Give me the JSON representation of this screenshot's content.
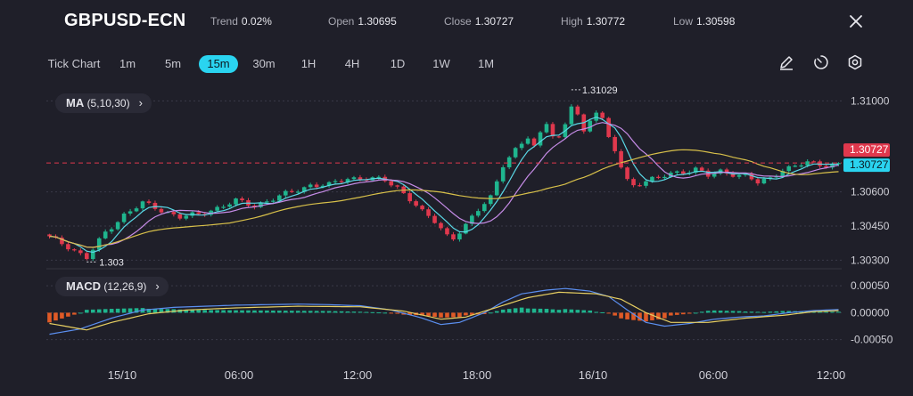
{
  "header": {
    "symbol": "GBPUSD-ECN",
    "trend_label": "Trend",
    "trend_value": "0.02%",
    "open_label": "Open",
    "open_value": "1.30695",
    "close_label": "Close",
    "close_value": "1.30727",
    "high_label": "High",
    "high_value": "1.30772",
    "low_label": "Low",
    "low_value": "1.30598"
  },
  "timeframes": [
    "Tick Chart",
    "1m",
    "5m",
    "15m",
    "30m",
    "1H",
    "4H",
    "1D",
    "1W",
    "1M"
  ],
  "active_timeframe": "15m",
  "tools": [
    "pencil-icon",
    "timer-icon",
    "settings-icon"
  ],
  "indicators": {
    "ma": {
      "name": "MA",
      "params": "(5,10,30)"
    },
    "macd": {
      "name": "MACD",
      "params": "(12,26,9)"
    }
  },
  "colors": {
    "bull": "#1fb58e",
    "bear": "#e0384d",
    "ma5": "#5ad8e6",
    "ma10": "#c58be6",
    "ma30": "#d8c04a",
    "accent": "#2ad4f0",
    "macd_hist_pos": "#1fb58e",
    "macd_hist_neg": "#e05a26",
    "macd_line": "#5b8ff0",
    "signal_line": "#e7cf62"
  },
  "chart_data": {
    "type": "candlestick",
    "price_axis": {
      "ticks": [
        "1.31000",
        "1.30600",
        "1.30450",
        "1.30300"
      ],
      "min": 1.3027,
      "max": 1.3106
    },
    "x_ticks": [
      "15/10",
      "06:00",
      "12:00",
      "18:00",
      "16/10",
      "06:00",
      "12:00"
    ],
    "current_price": "1.30727",
    "current_price_secondary": "1.30727",
    "high_marker": "1.31029",
    "low_marker": "1.303",
    "macd_axis": {
      "ticks": [
        "0.00050",
        "0.00000",
        "-0.00050"
      ],
      "min": -0.00072,
      "max": 0.00075
    },
    "close_path": [
      [
        0,
        1.304
      ],
      [
        3,
        1.3036
      ],
      [
        6,
        1.3031
      ],
      [
        9,
        1.3042
      ],
      [
        12,
        1.305
      ],
      [
        15,
        1.3055
      ],
      [
        18,
        1.3052
      ],
      [
        21,
        1.3049
      ],
      [
        24,
        1.305
      ],
      [
        27,
        1.3053
      ],
      [
        30,
        1.3056
      ],
      [
        33,
        1.3054
      ],
      [
        36,
        1.3057
      ],
      [
        39,
        1.306
      ],
      [
        42,
        1.3063
      ],
      [
        45,
        1.3063
      ],
      [
        48,
        1.3066
      ],
      [
        51,
        1.3066
      ],
      [
        54,
        1.3065
      ],
      [
        56,
        1.3062
      ],
      [
        58,
        1.3057
      ],
      [
        60,
        1.3051
      ],
      [
        62,
        1.3047
      ],
      [
        64,
        1.3041
      ],
      [
        65,
        1.304
      ],
      [
        67,
        1.3045
      ],
      [
        69,
        1.3052
      ],
      [
        71,
        1.3058
      ],
      [
        73,
        1.3072
      ],
      [
        75,
        1.3078
      ],
      [
        77,
        1.3084
      ],
      [
        78,
        1.308
      ],
      [
        79,
        1.3086
      ],
      [
        80,
        1.3091
      ],
      [
        81,
        1.3085
      ],
      [
        82,
        1.3083
      ],
      [
        83,
        1.3089
      ],
      [
        84,
        1.3098
      ],
      [
        85,
        1.3094
      ],
      [
        86,
        1.3086
      ],
      [
        87,
        1.3092
      ],
      [
        88,
        1.3096
      ],
      [
        89,
        1.3092
      ],
      [
        90,
        1.3083
      ],
      [
        91,
        1.3078
      ],
      [
        92,
        1.3071
      ],
      [
        93,
        1.3065
      ],
      [
        94,
        1.3063
      ],
      [
        96,
        1.3065
      ],
      [
        98,
        1.3066
      ],
      [
        100,
        1.3068
      ],
      [
        102,
        1.3069
      ],
      [
        104,
        1.307
      ],
      [
        106,
        1.3067
      ],
      [
        108,
        1.3069
      ],
      [
        110,
        1.3068
      ],
      [
        112,
        1.3067
      ],
      [
        114,
        1.3064
      ],
      [
        116,
        1.3066
      ],
      [
        118,
        1.307
      ],
      [
        120,
        1.3071
      ],
      [
        122,
        1.3073
      ],
      [
        124,
        1.3072
      ],
      [
        126,
        1.3072
      ],
      [
        127,
        1.30727
      ]
    ],
    "macd_path": [
      [
        0,
        -0.0004
      ],
      [
        5,
        -0.0003
      ],
      [
        10,
        -0.0001
      ],
      [
        15,
        5e-05
      ],
      [
        20,
        0.0001
      ],
      [
        25,
        0.00012
      ],
      [
        30,
        0.00014
      ],
      [
        35,
        0.00015
      ],
      [
        40,
        0.00016
      ],
      [
        45,
        0.00015
      ],
      [
        50,
        0.00013
      ],
      [
        55,
        5e-05
      ],
      [
        60,
        -0.0001
      ],
      [
        63,
        -0.00022
      ],
      [
        66,
        -0.00018
      ],
      [
        70,
        0.0
      ],
      [
        73,
        0.0002
      ],
      [
        76,
        0.00035
      ],
      [
        80,
        0.00042
      ],
      [
        83,
        0.00045
      ],
      [
        87,
        0.0004
      ],
      [
        90,
        0.0003
      ],
      [
        93,
        5e-05
      ],
      [
        96,
        -0.00018
      ],
      [
        99,
        -0.00025
      ],
      [
        103,
        -0.0002
      ],
      [
        107,
        -0.00012
      ],
      [
        111,
        -8e-05
      ],
      [
        115,
        -6e-05
      ],
      [
        119,
        0.0
      ],
      [
        123,
        4e-05
      ],
      [
        127,
        6e-05
      ]
    ],
    "signal_path": [
      [
        0,
        -0.0002
      ],
      [
        6,
        -0.00032
      ],
      [
        10,
        -0.00018
      ],
      [
        16,
        -2e-05
      ],
      [
        22,
        5e-05
      ],
      [
        30,
        9e-05
      ],
      [
        40,
        0.00012
      ],
      [
        50,
        0.00011
      ],
      [
        57,
        3e-05
      ],
      [
        63,
        -0.00012
      ],
      [
        67,
        -8e-05
      ],
      [
        72,
        0.0001
      ],
      [
        77,
        0.00028
      ],
      [
        82,
        0.00038
      ],
      [
        88,
        0.00035
      ],
      [
        92,
        0.00025
      ],
      [
        96,
        0.0
      ],
      [
        100,
        -0.00018
      ],
      [
        106,
        -0.00018
      ],
      [
        112,
        -0.0001
      ],
      [
        118,
        -5e-05
      ],
      [
        123,
        2e-05
      ],
      [
        127,
        4e-05
      ]
    ]
  }
}
